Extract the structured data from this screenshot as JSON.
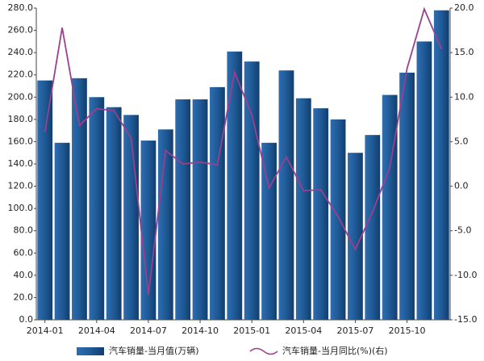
{
  "chart_data": {
    "type": "bar-line",
    "categories": [
      "2014-01",
      null,
      null,
      "2014-04",
      null,
      null,
      "2014-07",
      null,
      null,
      "2014-10",
      null,
      null,
      "2015-01",
      null,
      null,
      "2015-04",
      null,
      null,
      "2015-07",
      null,
      null,
      "2015-10",
      null,
      null
    ],
    "series": [
      {
        "name": "汽车销量-当月值(万辆)",
        "color": "#1f5a96",
        "type": "bar",
        "values": [
          215,
          159,
          217,
          200,
          191,
          184,
          161,
          171,
          198,
          198,
          209,
          241,
          232,
          159,
          224,
          199,
          190,
          180,
          150,
          166,
          202,
          222,
          250,
          278
        ]
      },
      {
        "name": "汽车销量-当月同比(%)(右)",
        "color": "#9b3f8f",
        "type": "line",
        "axis": "y2",
        "values": [
          6.1,
          17.8,
          6.8,
          8.7,
          8.5,
          5.4,
          -12.2,
          4.0,
          2.5,
          2.7,
          2.4,
          12.8,
          8.0,
          -0.2,
          3.3,
          -0.5,
          -0.4,
          -3.4,
          -7.1,
          -2.9,
          2.1,
          13.2,
          19.9,
          15.4
        ]
      }
    ],
    "ylim": [
      0,
      280
    ],
    "yticks": [
      {
        "value": 0,
        "label": "0.0"
      },
      {
        "value": 20,
        "label": "20.0"
      },
      {
        "value": 40,
        "label": "40.0"
      },
      {
        "value": 60,
        "label": "60.0"
      },
      {
        "value": 80,
        "label": "80.0"
      },
      {
        "value": 100,
        "label": "100.0"
      },
      {
        "value": 120,
        "label": "120.0"
      },
      {
        "value": 140,
        "label": "140.0"
      },
      {
        "value": 160,
        "label": "160.0"
      },
      {
        "value": 180,
        "label": "180.0"
      },
      {
        "value": 200,
        "label": "200.0"
      },
      {
        "value": 220,
        "label": "220.0"
      },
      {
        "value": 240,
        "label": "240.0"
      },
      {
        "value": 260,
        "label": "260.0"
      },
      {
        "value": 280,
        "label": "280.0"
      }
    ],
    "y2lim": [
      -15,
      20
    ],
    "y2ticks": [
      {
        "value": -15,
        "label": "-15.0"
      },
      {
        "value": -10,
        "label": "-10.0"
      },
      {
        "value": -5,
        "label": "-5.0"
      },
      {
        "value": 0,
        "label": "0.0"
      },
      {
        "value": 5,
        "label": "5.0"
      },
      {
        "value": 10,
        "label": "10.0"
      },
      {
        "value": 15,
        "label": "15.0"
      },
      {
        "value": 20,
        "label": "20.0"
      }
    ],
    "legend": "bottom"
  }
}
